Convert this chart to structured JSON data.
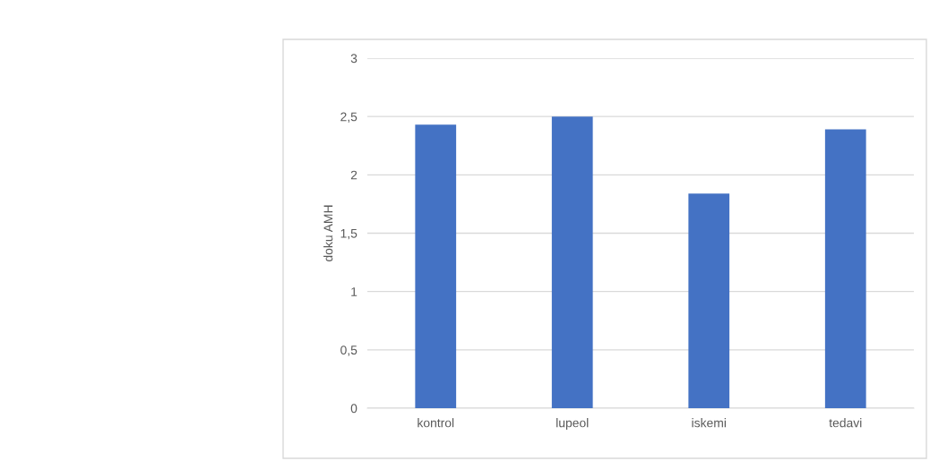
{
  "chart_data": {
    "type": "bar",
    "ylabel": "doku AMH",
    "categories": [
      "kontrol",
      "lupeol",
      "iskemi",
      "tedavi"
    ],
    "values": [
      2.43,
      2.5,
      1.84,
      2.39
    ],
    "color": "#4472c4",
    "ylim": [
      0,
      3
    ],
    "yticks": [
      0,
      {
        "value": 0.5,
        "label": "0,5"
      },
      1,
      {
        "value": 1.5,
        "label": "1,5"
      },
      2,
      {
        "value": 2.5,
        "label": "2,5"
      },
      3
    ],
    "grid": "y"
  }
}
